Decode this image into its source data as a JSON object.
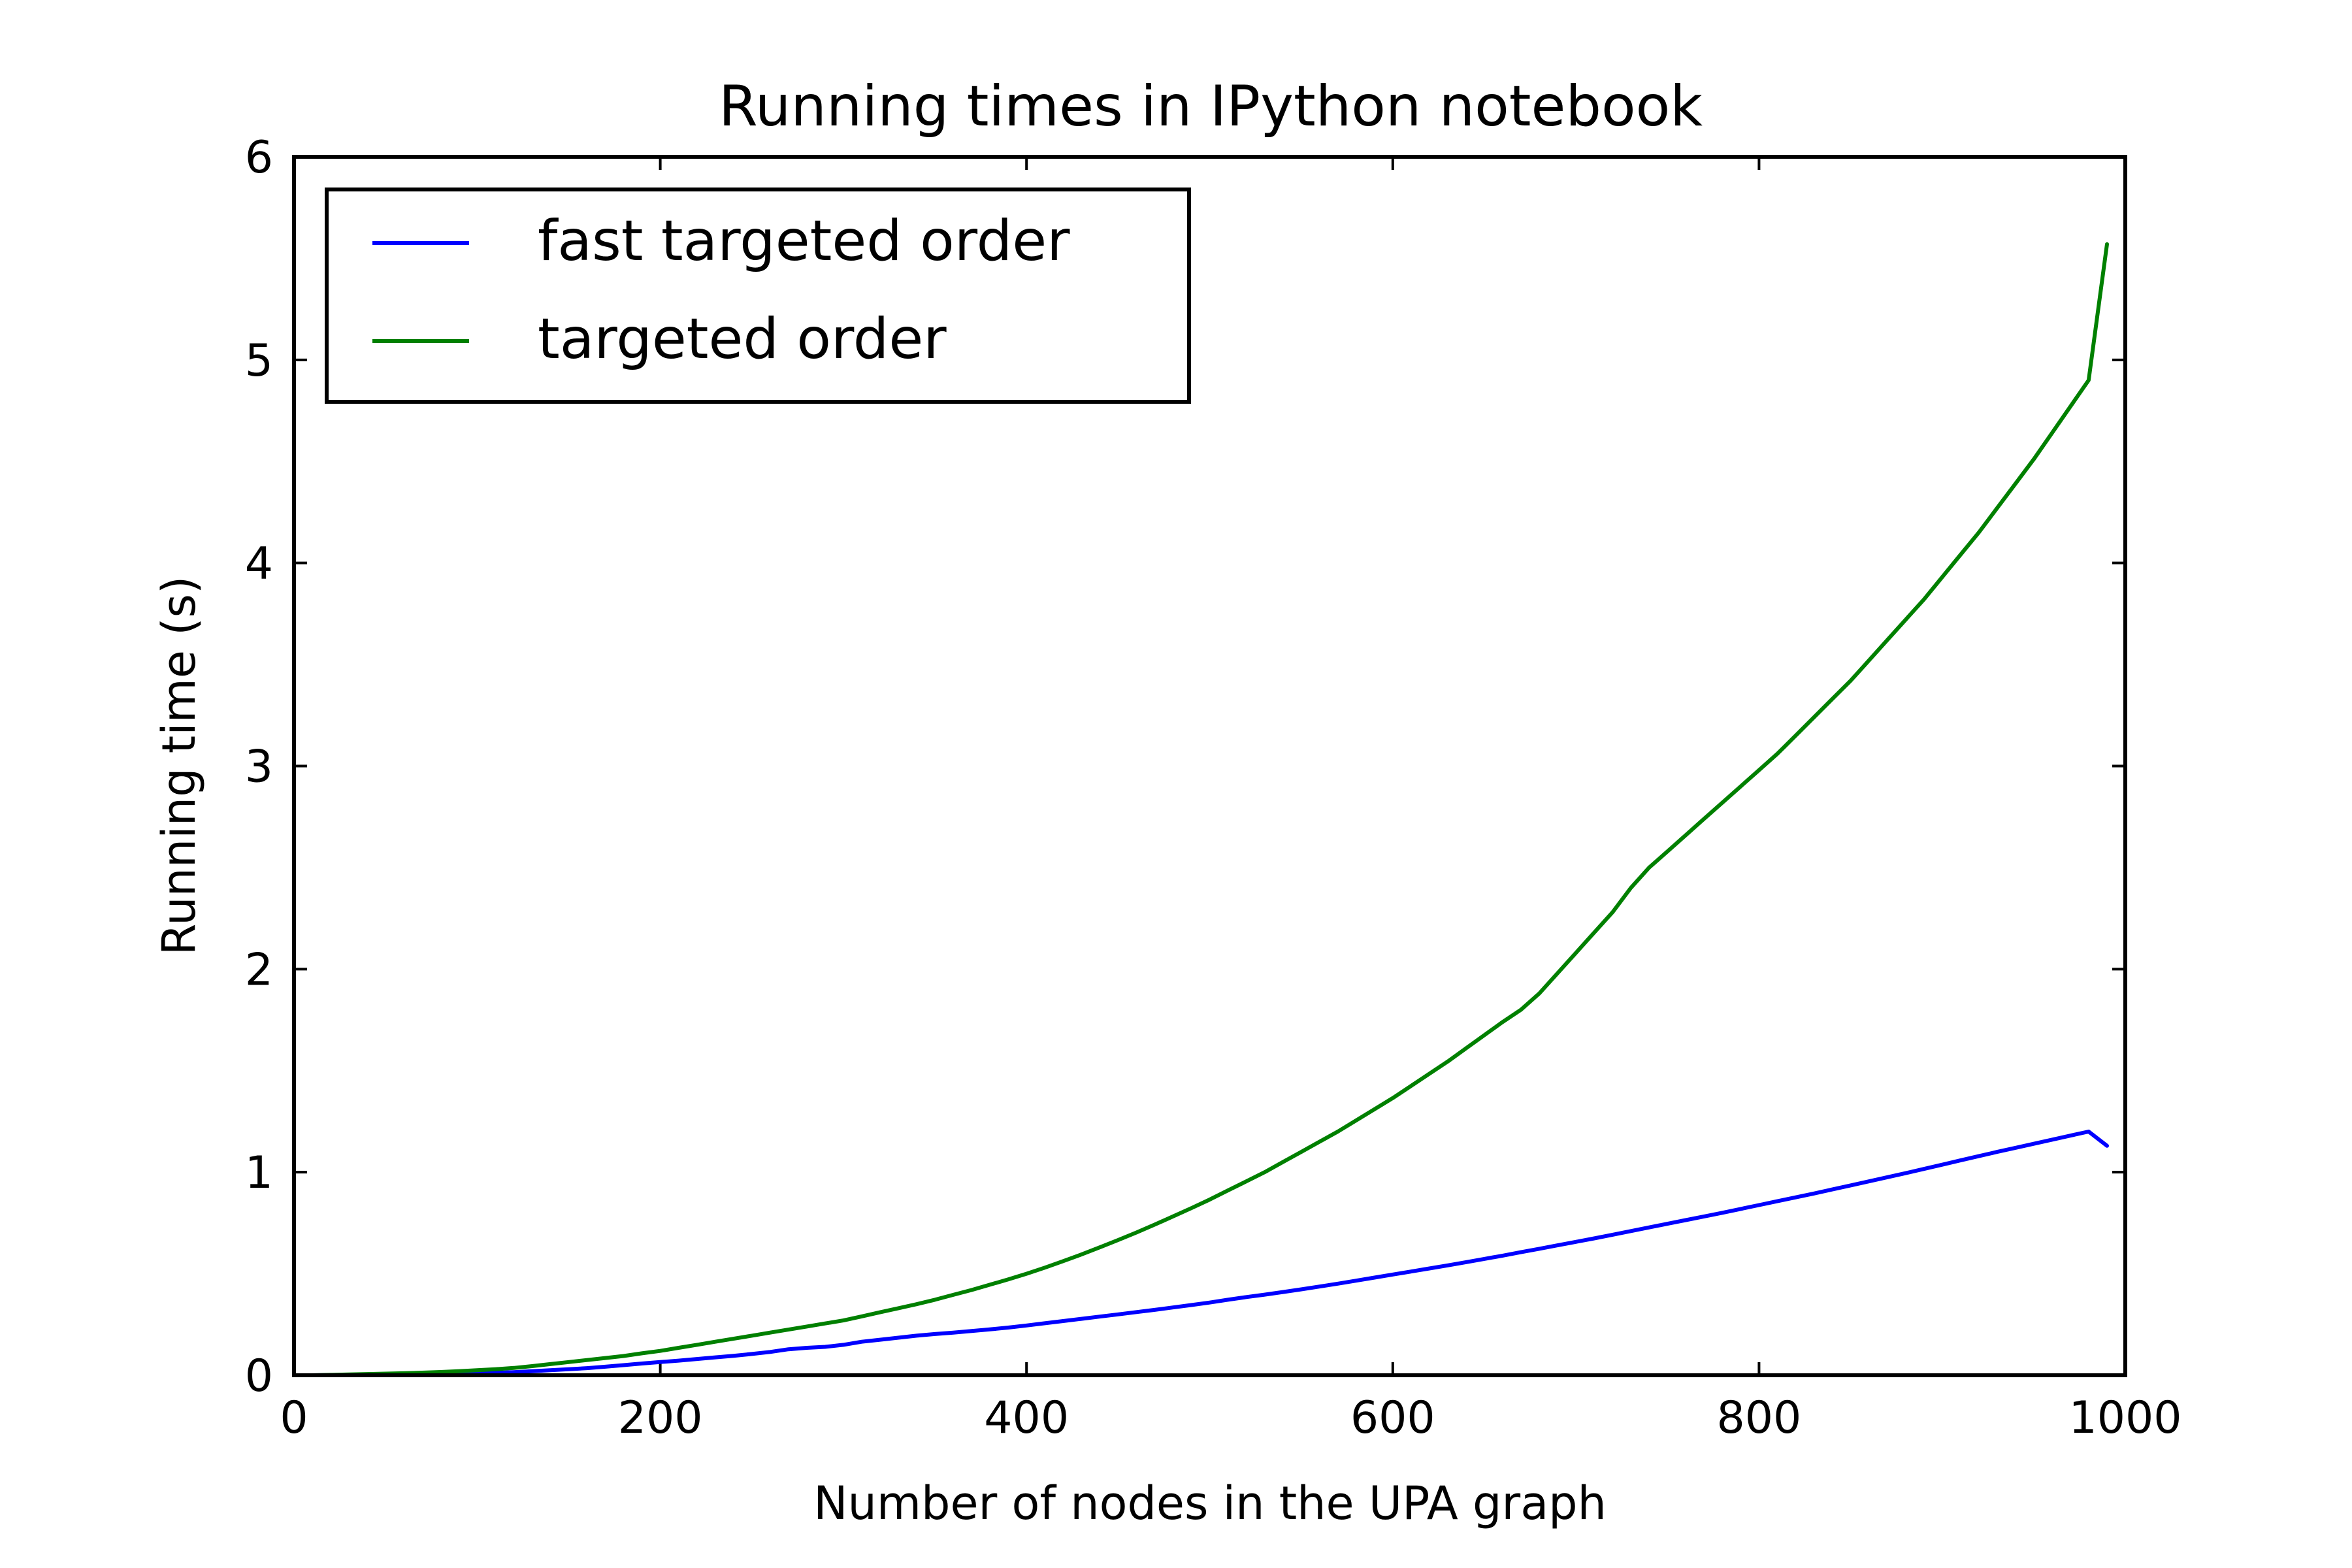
{
  "chart_data": {
    "type": "line",
    "title": "Running times in IPython notebook",
    "xlabel": "Number of nodes in the UPA graph",
    "ylabel": "Running time (s)",
    "xlim": [
      0,
      1000
    ],
    "ylim": [
      0,
      6
    ],
    "xticks": [
      0,
      200,
      400,
      600,
      800,
      1000
    ],
    "yticks": [
      0,
      1,
      2,
      3,
      4,
      5,
      6
    ],
    "xtick_labels": [
      "0",
      "200",
      "400",
      "600",
      "800",
      "1000"
    ],
    "ytick_labels": [
      "0",
      "1",
      "2",
      "3",
      "4",
      "5",
      "6"
    ],
    "grid": false,
    "legend_position": "top-left",
    "x": [
      0,
      10,
      20,
      30,
      40,
      50,
      60,
      70,
      80,
      90,
      100,
      110,
      120,
      130,
      140,
      150,
      160,
      170,
      180,
      190,
      200,
      210,
      220,
      230,
      240,
      250,
      260,
      270,
      280,
      290,
      300,
      310,
      320,
      330,
      340,
      350,
      360,
      370,
      380,
      390,
      400,
      410,
      420,
      430,
      440,
      450,
      460,
      470,
      480,
      490,
      500,
      510,
      520,
      530,
      540,
      550,
      560,
      570,
      580,
      590,
      600,
      610,
      620,
      630,
      640,
      650,
      660,
      670,
      680,
      690,
      700,
      710,
      720,
      730,
      740,
      750,
      760,
      770,
      780,
      790,
      800,
      810,
      820,
      830,
      840,
      850,
      860,
      870,
      880,
      890,
      900,
      910,
      920,
      930,
      940,
      950,
      960,
      970,
      980,
      990
    ],
    "series": [
      {
        "name": "fast targeted order",
        "color": "#0000ff",
        "values": [
          0.0,
          0.0,
          0.001,
          0.002,
          0.003,
          0.004,
          0.005,
          0.006,
          0.007,
          0.008,
          0.01,
          0.012,
          0.015,
          0.02,
          0.025,
          0.03,
          0.035,
          0.042,
          0.05,
          0.058,
          0.065,
          0.072,
          0.08,
          0.088,
          0.096,
          0.105,
          0.115,
          0.128,
          0.135,
          0.14,
          0.15,
          0.165,
          0.175,
          0.185,
          0.195,
          0.203,
          0.21,
          0.218,
          0.226,
          0.235,
          0.245,
          0.256,
          0.267,
          0.278,
          0.289,
          0.3,
          0.311,
          0.322,
          0.334,
          0.346,
          0.358,
          0.372,
          0.385,
          0.397,
          0.41,
          0.423,
          0.437,
          0.451,
          0.466,
          0.481,
          0.496,
          0.511,
          0.526,
          0.541,
          0.557,
          0.573,
          0.589,
          0.606,
          0.623,
          0.64,
          0.657,
          0.674,
          0.692,
          0.71,
          0.728,
          0.746,
          0.764,
          0.782,
          0.8,
          0.819,
          0.838,
          0.857,
          0.876,
          0.895,
          0.915,
          0.935,
          0.955,
          0.975,
          0.995,
          1.016,
          1.037,
          1.058,
          1.079,
          1.1,
          1.12,
          1.14,
          1.16,
          1.18,
          1.2,
          1.13
        ]
      },
      {
        "name": "targeted order",
        "color": "#008000",
        "values": [
          0.0,
          0.0,
          0.002,
          0.004,
          0.006,
          0.008,
          0.01,
          0.013,
          0.016,
          0.02,
          0.025,
          0.03,
          0.036,
          0.045,
          0.055,
          0.065,
          0.075,
          0.085,
          0.095,
          0.108,
          0.12,
          0.135,
          0.15,
          0.165,
          0.18,
          0.195,
          0.21,
          0.225,
          0.24,
          0.255,
          0.27,
          0.29,
          0.31,
          0.33,
          0.35,
          0.372,
          0.396,
          0.42,
          0.446,
          0.472,
          0.5,
          0.53,
          0.562,
          0.595,
          0.63,
          0.666,
          0.703,
          0.742,
          0.782,
          0.823,
          0.865,
          0.91,
          0.955,
          1.0,
          1.05,
          1.1,
          1.15,
          1.2,
          1.255,
          1.31,
          1.365,
          1.425,
          1.485,
          1.545,
          1.61,
          1.675,
          1.74,
          1.8,
          1.88,
          1.98,
          2.08,
          2.18,
          2.28,
          2.4,
          2.5,
          2.58,
          2.66,
          2.74,
          2.82,
          2.9,
          2.98,
          3.06,
          3.15,
          3.24,
          3.33,
          3.42,
          3.52,
          3.62,
          3.72,
          3.82,
          3.93,
          4.04,
          4.15,
          4.27,
          4.39,
          4.51,
          4.64,
          4.77,
          4.9,
          5.57
        ]
      }
    ]
  }
}
